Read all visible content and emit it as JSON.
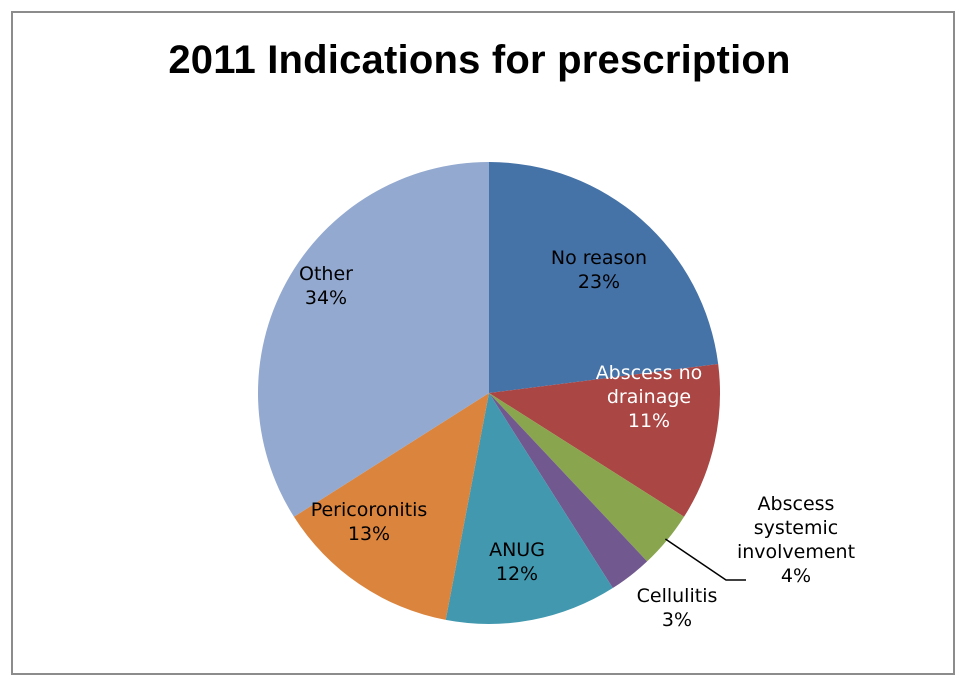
{
  "chart_data": {
    "type": "pie",
    "title": "2011 Indications for prescription",
    "slices": [
      {
        "name": "No reason",
        "value": 23,
        "color": "#4572A7",
        "label_lines": [
          "No reason",
          "23%"
        ],
        "label_color": "#000000"
      },
      {
        "name": "Abscess no drainage",
        "value": 11,
        "color": "#AA4643",
        "label_lines": [
          "Abscess no",
          "drainage",
          "11%"
        ],
        "label_color": "#ffffff"
      },
      {
        "name": "Abscess systemic involvement",
        "value": 4,
        "color": "#89A54E",
        "label_lines": [
          "Abscess",
          "systemic",
          "involvement",
          "4%"
        ],
        "label_color": "#000000"
      },
      {
        "name": "Cellulitis",
        "value": 3,
        "color": "#71588F",
        "label_lines": [
          "Cellulitis",
          "3%"
        ],
        "label_color": "#000000"
      },
      {
        "name": "ANUG",
        "value": 12,
        "color": "#4198AF",
        "label_lines": [
          "ANUG",
          "12%"
        ],
        "label_color": "#000000"
      },
      {
        "name": "Pericoronitis",
        "value": 13,
        "color": "#DB843D",
        "label_lines": [
          "Pericoronitis",
          "13%"
        ],
        "label_color": "#000000"
      },
      {
        "name": "Other",
        "value": 34,
        "color": "#93A9CF",
        "label_lines": [
          "Other",
          "34%"
        ],
        "label_color": "#000000"
      }
    ],
    "start_angle_deg": 0,
    "direction": "clockwise",
    "legend": "none"
  }
}
